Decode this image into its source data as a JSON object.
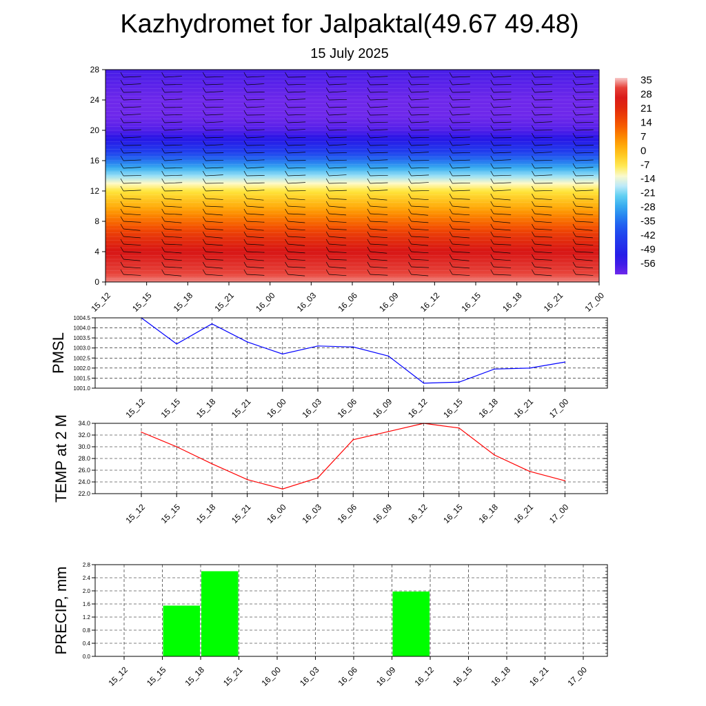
{
  "title": "Kazhydromet for Jalpaktal(49.67 49.48)",
  "subtitle": "15 July 2025",
  "colors": {
    "pmsl_line": "#0000ff",
    "temp_line": "#ff0000",
    "precip_bar": "#00ff00",
    "grid": "#000000"
  },
  "chart_data": [
    {
      "type": "heatmap",
      "name_ref": "cross-section",
      "x": [
        "15_12",
        "15_15",
        "15_18",
        "15_21",
        "16_00",
        "16_03",
        "16_06",
        "16_09",
        "16_12",
        "16_15",
        "16_18",
        "16_21",
        "17_00"
      ],
      "y_ticks": [
        "0",
        "4",
        "8",
        "12",
        "16",
        "20",
        "24",
        "28"
      ],
      "ylim": [
        0,
        28
      ],
      "legend_labels": [
        "35",
        "28",
        "21",
        "14",
        "7",
        "0",
        "-7",
        "-14",
        "-21",
        "-28",
        "-35",
        "-42",
        "-49",
        "-56"
      ],
      "legend_placement": "right",
      "profile_levels": [
        0,
        1,
        2,
        3,
        4,
        5,
        6,
        7,
        8,
        9,
        10,
        11,
        12,
        13,
        14,
        15,
        16,
        17,
        18,
        19,
        20,
        21,
        22,
        23,
        24,
        25,
        26,
        27,
        28
      ],
      "profile_values": [
        33,
        31,
        29,
        27,
        25,
        22,
        19,
        15,
        11,
        7,
        3,
        -1,
        -5,
        -10,
        -17,
        -24,
        -31,
        -38,
        -44,
        -49,
        -53,
        -55,
        -56,
        -56,
        -56,
        -55,
        -54,
        -53,
        -52
      ]
    },
    {
      "type": "line",
      "ylabel": "PMSL",
      "categories": [
        "15_12",
        "15_15",
        "15_18",
        "15_21",
        "16_00",
        "16_03",
        "16_06",
        "16_09",
        "16_12",
        "16_15",
        "16_18",
        "16_21",
        "17_00"
      ],
      "values": [
        1004.5,
        1003.2,
        1004.2,
        1003.3,
        1002.7,
        1003.1,
        1003.05,
        1002.6,
        1001.25,
        1001.3,
        1001.95,
        1002.0,
        1002.3
      ],
      "ylim": [
        1001.0,
        1004.5
      ],
      "y_ticks": [
        "1001.0",
        "1001.5",
        "1002.0",
        "1002.5",
        "1003.0",
        "1003.5",
        "1004.0",
        "1004.5"
      ],
      "grid": true
    },
    {
      "type": "line",
      "ylabel": "TEMP at 2 M",
      "categories": [
        "15_12",
        "15_15",
        "15_18",
        "15_21",
        "16_00",
        "16_03",
        "16_06",
        "16_09",
        "16_12",
        "16_15",
        "16_18",
        "16_21",
        "17_00"
      ],
      "values": [
        32.5,
        30.0,
        27.1,
        24.4,
        22.8,
        24.7,
        31.2,
        32.6,
        34.0,
        33.2,
        28.6,
        25.8,
        24.2
      ],
      "ylim": [
        22.0,
        34.0
      ],
      "y_ticks": [
        "22.0",
        "24.0",
        "26.0",
        "28.0",
        "30.0",
        "32.0",
        "34.0"
      ],
      "grid": true
    },
    {
      "type": "bar",
      "ylabel": "PRECIP, mm",
      "categories": [
        "15_12",
        "15_15",
        "15_18",
        "15_21",
        "16_00",
        "16_03",
        "16_06",
        "16_09",
        "16_12",
        "16_15",
        "16_18",
        "16_21",
        "17_00"
      ],
      "values": [
        0,
        1.55,
        2.6,
        0,
        0,
        0,
        0,
        1.98,
        0,
        0,
        0,
        0,
        0
      ],
      "ylim": [
        0,
        2.8
      ],
      "y_ticks": [
        "0.0",
        "0.4",
        "0.8",
        "1.2",
        "1.6",
        "2.0",
        "2.4",
        "2.8"
      ],
      "grid": true
    }
  ]
}
